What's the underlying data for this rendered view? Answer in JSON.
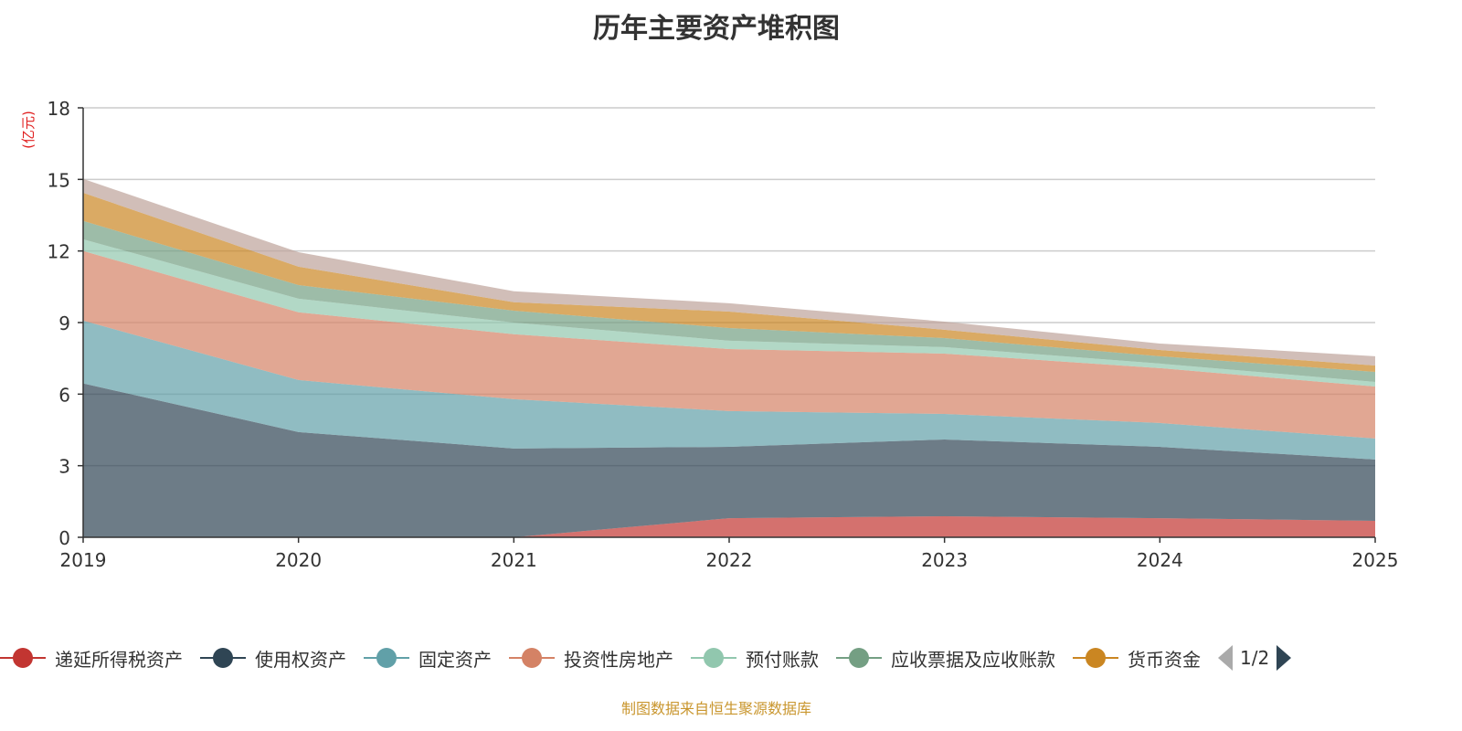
{
  "chart_data": {
    "type": "area",
    "stacked": true,
    "title": "历年主要资产堆积图",
    "ylabel": "(亿元)",
    "xlabel": "",
    "ylim": [
      0,
      18
    ],
    "yticks": [
      0,
      3,
      6,
      9,
      12,
      15,
      18
    ],
    "x": [
      "2019",
      "2020",
      "2021",
      "2022",
      "2023",
      "2024",
      "2025"
    ],
    "grid": true,
    "legend_position": "bottom",
    "legend_page": "1/2",
    "series": [
      {
        "name": "递延所得税资产",
        "color": "#c23531",
        "values": [
          0,
          0,
          0,
          0.8,
          0.88,
          0.8,
          0.69
        ]
      },
      {
        "name": "使用权资产",
        "color": "#2f4554",
        "values": [
          6.45,
          4.41,
          3.72,
          2.99,
          3.22,
          2.99,
          2.57
        ]
      },
      {
        "name": "固定资产",
        "color": "#61a0a8",
        "values": [
          2.63,
          2.18,
          2.07,
          1.5,
          1.07,
          1.0,
          0.88
        ]
      },
      {
        "name": "投资性房地产",
        "color": "#d48265",
        "values": [
          2.92,
          2.84,
          2.72,
          2.6,
          2.53,
          2.3,
          2.18
        ]
      },
      {
        "name": "预付账款",
        "color": "#91c7ae",
        "values": [
          0.49,
          0.57,
          0.49,
          0.35,
          0.27,
          0.19,
          0.19
        ]
      },
      {
        "name": "应收票据及应收账款",
        "color": "#749f83",
        "values": [
          0.77,
          0.57,
          0.5,
          0.53,
          0.38,
          0.31,
          0.42
        ]
      },
      {
        "name": "货币资金",
        "color": "#ca8622",
        "values": [
          1.18,
          0.77,
          0.35,
          0.69,
          0.35,
          0.26,
          0.27
        ]
      },
      {
        "name": "",
        "color": "#bda29a",
        "values": [
          0.58,
          0.61,
          0.46,
          0.35,
          0.34,
          0.27,
          0.39
        ]
      }
    ]
  },
  "footer": "制图数据来自恒生聚源数据库"
}
